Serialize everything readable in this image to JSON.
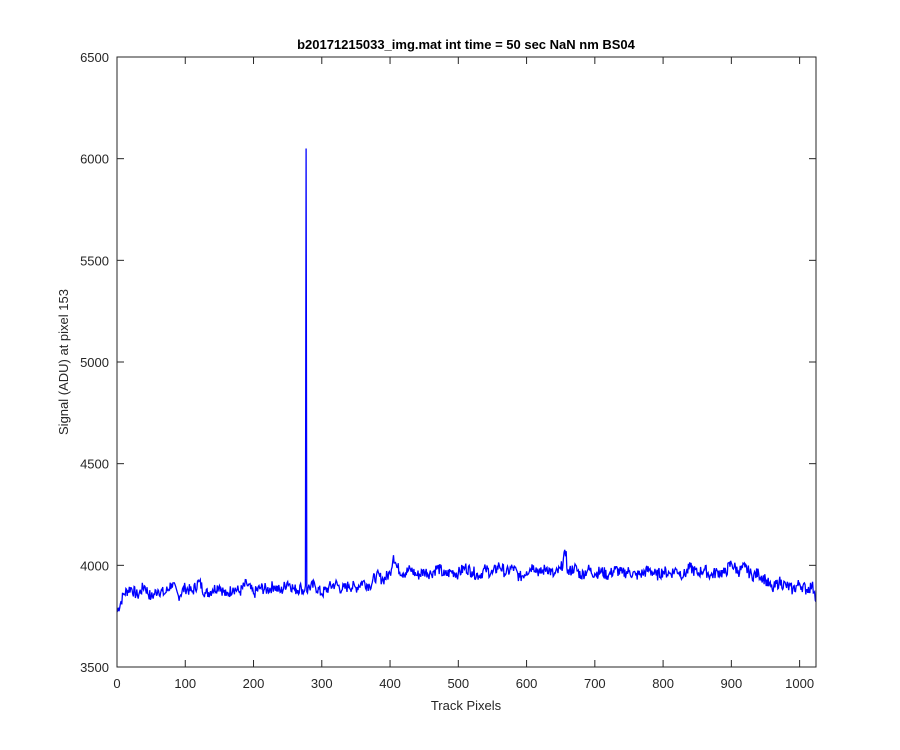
{
  "chart_data": {
    "type": "line",
    "title": "b20171215033_img.mat int time = 50 sec  NaN nm BS04",
    "xlabel": "Track Pixels",
    "ylabel": "Signal (ADU) at pixel 153",
    "xlim": [
      0,
      1024
    ],
    "ylim": [
      3500,
      6500
    ],
    "xticks": [
      0,
      100,
      200,
      300,
      400,
      500,
      600,
      700,
      800,
      900,
      1000
    ],
    "yticks": [
      3500,
      4000,
      4500,
      5000,
      5500,
      6000,
      6500
    ],
    "grid": false,
    "series": [
      {
        "color": "#0000ff",
        "x": [
          0,
          10,
          20,
          30,
          40,
          50,
          60,
          70,
          80,
          90,
          100,
          110,
          120,
          130,
          140,
          150,
          160,
          170,
          180,
          190,
          200,
          210,
          220,
          230,
          240,
          250,
          260,
          270,
          274,
          276,
          277,
          278,
          280,
          290,
          300,
          310,
          320,
          330,
          340,
          350,
          360,
          370,
          380,
          390,
          400,
          405,
          410,
          420,
          430,
          440,
          450,
          460,
          470,
          480,
          490,
          500,
          510,
          520,
          530,
          540,
          550,
          560,
          570,
          580,
          590,
          600,
          610,
          620,
          630,
          640,
          650,
          658,
          660,
          670,
          680,
          690,
          700,
          710,
          720,
          730,
          740,
          750,
          760,
          770,
          780,
          790,
          800,
          810,
          820,
          830,
          840,
          850,
          860,
          870,
          880,
          890,
          900,
          910,
          920,
          930,
          940,
          950,
          960,
          970,
          980,
          990,
          1000,
          1010,
          1018,
          1022,
          1024
        ],
        "y": [
          3770,
          3860,
          3890,
          3850,
          3900,
          3840,
          3880,
          3860,
          3910,
          3850,
          3890,
          3870,
          3920,
          3860,
          3880,
          3900,
          3850,
          3890,
          3870,
          3910,
          3860,
          3890,
          3880,
          3900,
          3870,
          3920,
          3880,
          3890,
          3870,
          3900,
          6050,
          3870,
          3890,
          3900,
          3860,
          3890,
          3910,
          3880,
          3900,
          3890,
          3920,
          3900,
          3950,
          3930,
          3960,
          4050,
          3990,
          3960,
          3980,
          3950,
          3970,
          3960,
          3990,
          3950,
          3970,
          3960,
          3990,
          3970,
          3950,
          3980,
          3960,
          4000,
          3960,
          3990,
          3940,
          3970,
          4000,
          3960,
          3990,
          3950,
          3980,
          4070,
          3960,
          3990,
          3950,
          3980,
          3960,
          3970,
          3950,
          3980,
          3960,
          3970,
          3950,
          3960,
          3980,
          3950,
          3970,
          3960,
          3980,
          3950,
          3990,
          3960,
          3980,
          3950,
          3970,
          3960,
          4010,
          3970,
          3990,
          3950,
          3960,
          3930,
          3880,
          3920,
          3900,
          3880,
          3910,
          3880,
          3900,
          3870,
          3820
        ]
      }
    ]
  }
}
